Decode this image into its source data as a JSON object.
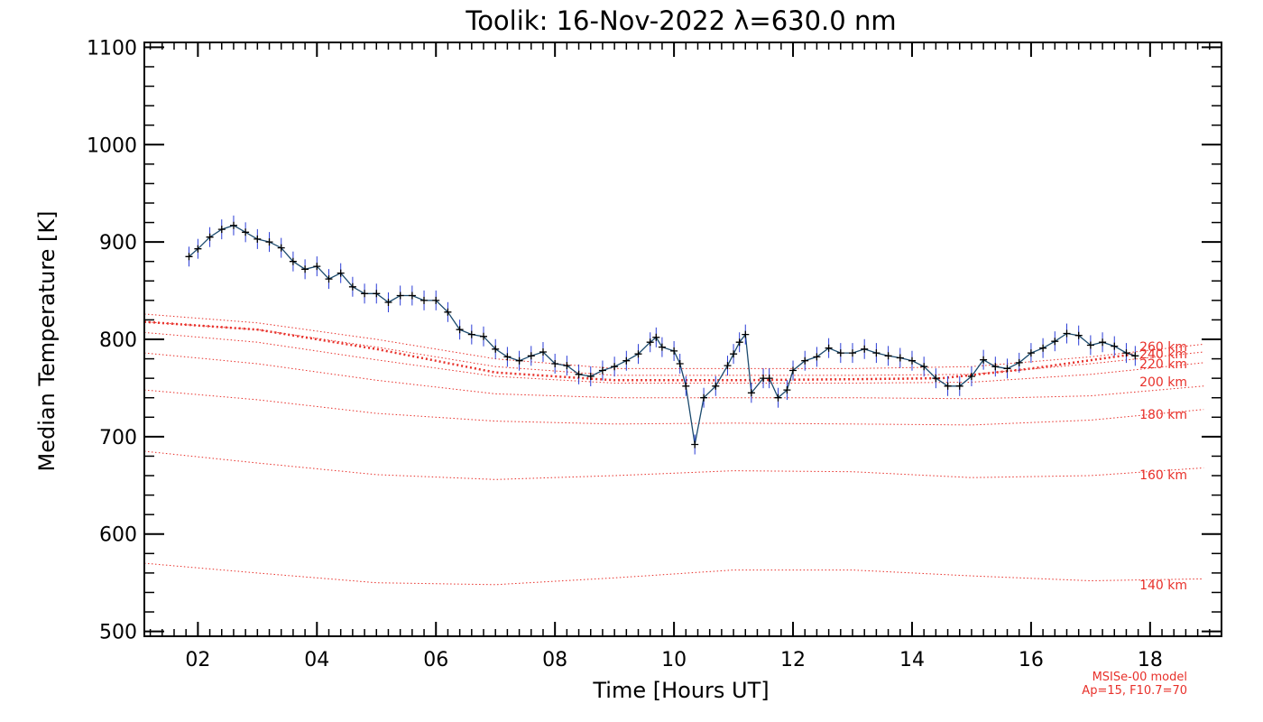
{
  "chart_data": {
    "type": "line",
    "title": "Toolik: 16-Nov-2022 λ=630.0 nm",
    "xlabel": "Time [Hours UT]",
    "ylabel": "Median Temperature [K]",
    "xlim": [
      1.1,
      19.2
    ],
    "ylim": [
      495,
      1105
    ],
    "x_ticks": [
      2,
      4,
      6,
      8,
      10,
      12,
      14,
      16,
      18
    ],
    "x_tick_labels": [
      "02",
      "04",
      "06",
      "08",
      "10",
      "12",
      "14",
      "16",
      "18"
    ],
    "y_ticks": [
      500,
      600,
      700,
      800,
      900,
      1000,
      1100
    ],
    "y_tick_labels": [
      "500",
      "600",
      "700",
      "800",
      "900",
      "1000",
      "1100"
    ],
    "grid": false,
    "colors": {
      "measurement": "#000000",
      "error_bars": "#2a3cd6",
      "model": "#e8302a"
    },
    "series": [
      {
        "values_shown_as": "measured median temperature with error bars",
        "x": [
          1.85,
          2.0,
          2.2,
          2.4,
          2.6,
          2.8,
          3.0,
          3.2,
          3.4,
          3.6,
          3.8,
          4.0,
          4.2,
          4.4,
          4.6,
          4.8,
          5.0,
          5.2,
          5.4,
          5.6,
          5.8,
          6.0,
          6.2,
          6.4,
          6.6,
          6.8,
          7.0,
          7.2,
          7.4,
          7.6,
          7.8,
          8.0,
          8.2,
          8.4,
          8.6,
          8.8,
          9.0,
          9.2,
          9.4,
          9.6,
          9.7,
          9.8,
          10.0,
          10.1,
          10.2,
          10.35,
          10.5,
          10.7,
          10.9,
          11.0,
          11.1,
          11.2,
          11.3,
          11.5,
          11.6,
          11.75,
          11.9,
          12.0,
          12.2,
          12.4,
          12.6,
          12.8,
          13.0,
          13.2,
          13.4,
          13.6,
          13.8,
          14.0,
          14.2,
          14.4,
          14.6,
          14.8,
          15.0,
          15.2,
          15.4,
          15.6,
          15.8,
          16.0,
          16.2,
          16.4,
          16.6,
          16.8,
          17.0,
          17.2,
          17.4,
          17.6,
          17.75
        ],
        "y": [
          885,
          893,
          905,
          913,
          917,
          910,
          903,
          900,
          894,
          880,
          872,
          875,
          862,
          868,
          854,
          847,
          847,
          838,
          845,
          845,
          840,
          840,
          828,
          810,
          805,
          803,
          790,
          782,
          778,
          783,
          787,
          775,
          773,
          764,
          762,
          768,
          772,
          778,
          785,
          797,
          802,
          792,
          788,
          775,
          752,
          692,
          740,
          752,
          773,
          785,
          797,
          805,
          745,
          760,
          760,
          740,
          748,
          768,
          778,
          782,
          791,
          786,
          786,
          790,
          786,
          783,
          781,
          778,
          772,
          760,
          752,
          752,
          762,
          779,
          772,
          770,
          776,
          786,
          791,
          798,
          806,
          804,
          794,
          797,
          793,
          786,
          783
        ]
      },
      {
        "name": "240 km",
        "x": [
          1.1,
          3.0,
          5.0,
          7.0,
          9.0,
          11.0,
          13.0,
          14.5,
          16.0,
          17.75
        ],
        "y": [
          818,
          810,
          790,
          766,
          758,
          758,
          759,
          760,
          770,
          785
        ]
      }
    ],
    "model_curves": [
      {
        "label": "140 km",
        "x": [
          1.1,
          3.0,
          5.0,
          7.0,
          9.0,
          11.0,
          13.0,
          15.0,
          17.0,
          18.9
        ],
        "y": [
          570,
          560,
          550,
          548,
          555,
          563,
          563,
          557,
          552,
          554
        ]
      },
      {
        "label": "160 km",
        "x": [
          1.1,
          3.0,
          5.0,
          7.0,
          9.0,
          11.0,
          13.0,
          15.0,
          17.0,
          18.9
        ],
        "y": [
          685,
          673,
          661,
          656,
          660,
          665,
          664,
          658,
          660,
          668
        ]
      },
      {
        "label": "180 km",
        "x": [
          1.1,
          3.0,
          5.0,
          7.0,
          9.0,
          11.0,
          13.0,
          15.0,
          17.0,
          18.9
        ],
        "y": [
          748,
          738,
          724,
          716,
          713,
          714,
          713,
          712,
          717,
          728
        ]
      },
      {
        "label": "200 km",
        "x": [
          1.1,
          3.0,
          5.0,
          7.0,
          9.0,
          11.0,
          13.0,
          15.0,
          17.0,
          18.9
        ],
        "y": [
          786,
          775,
          758,
          744,
          740,
          740,
          740,
          739,
          742,
          752
        ]
      },
      {
        "label": "220 km",
        "x": [
          1.1,
          3.0,
          5.0,
          7.0,
          9.0,
          11.0,
          13.0,
          15.0,
          17.0,
          18.9
        ],
        "y": [
          807,
          797,
          779,
          762,
          755,
          755,
          755,
          756,
          764,
          776
        ]
      },
      {
        "label": "240 km",
        "x": [
          1.1,
          3.0,
          5.0,
          7.0,
          9.0,
          11.0,
          13.0,
          15.0,
          17.0,
          18.9
        ],
        "y": [
          818,
          810,
          792,
          772,
          763,
          763,
          763,
          764,
          775,
          787
        ]
      },
      {
        "label": "260 km",
        "x": [
          1.1,
          3.0,
          5.0,
          7.0,
          9.0,
          11.0,
          13.0,
          15.0,
          17.0,
          18.9
        ],
        "y": [
          826,
          817,
          800,
          780,
          770,
          770,
          770,
          772,
          782,
          795
        ]
      }
    ],
    "model_note": [
      "MSISe-00 model",
      "Ap=15, F10.7=70"
    ]
  }
}
